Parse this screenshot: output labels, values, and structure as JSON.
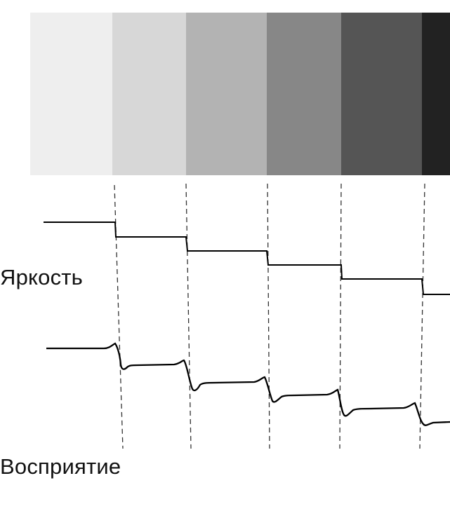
{
  "labels": {
    "brightness": "Яркость",
    "perception": "Восприятие"
  },
  "bands": [
    {
      "name": "band-1",
      "color": "#eeeeee"
    },
    {
      "name": "band-2",
      "color": "#d7d7d7"
    },
    {
      "name": "band-3",
      "color": "#b3b3b3"
    },
    {
      "name": "band-4",
      "color": "#878787"
    },
    {
      "name": "band-5",
      "color": "#555555"
    },
    {
      "name": "band-6",
      "color": "#222222"
    }
  ],
  "colors": {
    "curve": "#000000",
    "dashed_guides": "#333333"
  }
}
